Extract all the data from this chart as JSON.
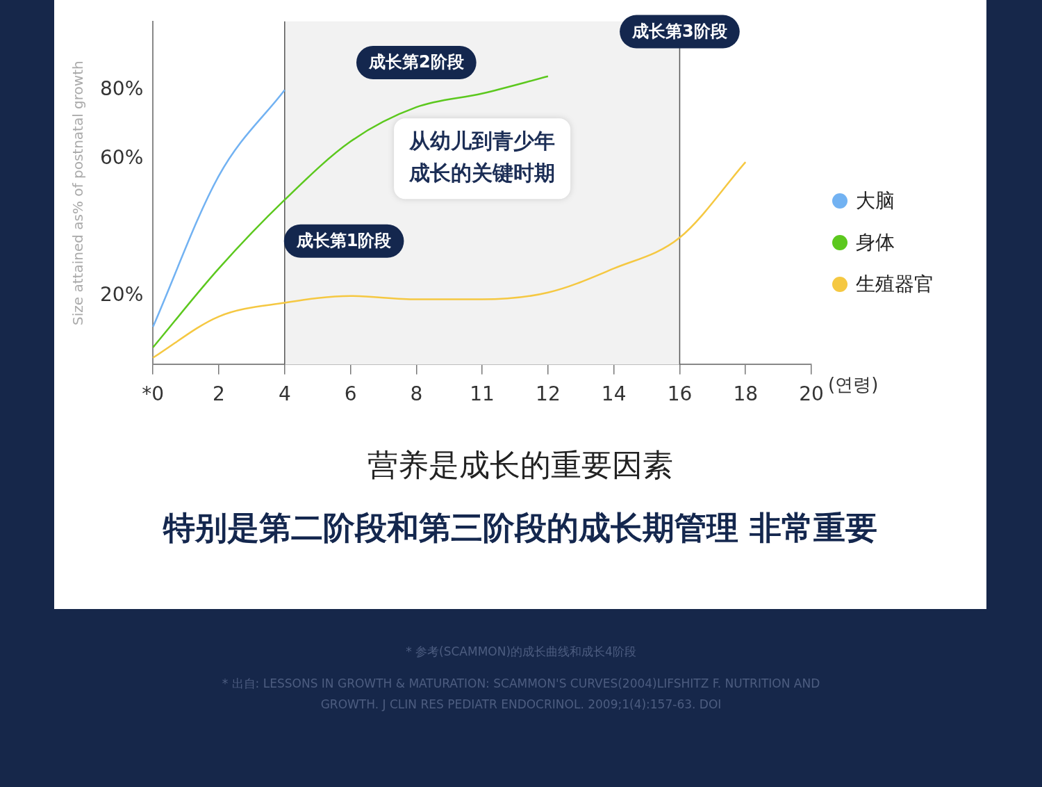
{
  "chart_data": {
    "type": "line",
    "xlabel": "(연령)",
    "ylabel": "Size attained as% of postnatal growth",
    "categories": [
      "*0",
      "2",
      "4",
      "6",
      "8",
      "11",
      "12",
      "14",
      "16",
      "18",
      "20"
    ],
    "series": [
      {
        "name": "大脑",
        "color": "#72b2f2",
        "values": [
          11,
          55,
          80,
          null,
          null,
          null,
          null,
          null,
          null,
          null,
          null
        ]
      },
      {
        "name": "身体",
        "color": "#5cc81e",
        "values": [
          5,
          28,
          48,
          65,
          75,
          79,
          84,
          null,
          null,
          null,
          null
        ]
      },
      {
        "name": "生殖器官",
        "color": "#f5c842",
        "values": [
          2,
          14,
          18,
          20,
          19,
          19,
          21,
          28,
          37,
          59,
          null
        ]
      }
    ],
    "ylim": [
      0,
      100
    ],
    "yticks": [
      {
        "value": 20,
        "label": "20%"
      },
      {
        "value": 60,
        "label": "60%"
      },
      {
        "value": 80,
        "label": "80%"
      }
    ],
    "grid": "x",
    "legend": "right",
    "marker": "none",
    "line_style": "solid",
    "bands": [
      {
        "axis": "x",
        "from": "4",
        "to": "16",
        "label": "从幼儿到青少年成长的关键时期",
        "color": "#f2f2f2"
      }
    ],
    "annotations": [
      "成长第1阶段",
      "成长第2阶段",
      "成长第3阶段",
      "营养是成长的重要因素",
      "特别是第二阶段和第三阶段的成长期管理 非常重要",
      "* 参考(SCAMMON)的成长曲线和成长4阶段",
      "* 出自: LESSONS IN GROWTH & MATURATION: SCAMMON'S CURVES(2004)LIFSHITZ F. NUTRITION AND GROWTH. J CLIN RES PEDIATR ENDOCRINOL. 2009;1(4):157-63. DOI"
    ]
  }
}
